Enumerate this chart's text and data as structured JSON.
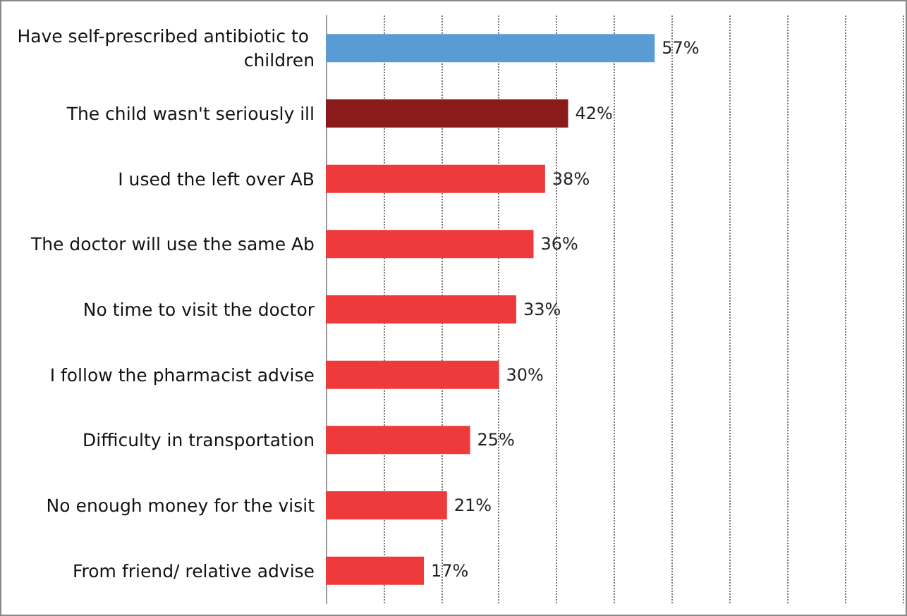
{
  "chart_data": {
    "type": "bar",
    "orientation": "horizontal",
    "categories": [
      "Have self-prescribed antibiotic to children",
      "The child wasn't seriously ill",
      "I used the left over AB",
      "The doctor will use the same Ab",
      "No time to visit the doctor",
      "I follow the pharmacist advise",
      "Difficulty in transportation",
      "No enough money for the visit",
      "From friend/ relative advise"
    ],
    "values": [
      57,
      42,
      38,
      36,
      33,
      30,
      25,
      21,
      17
    ],
    "colors": [
      "#5b9bd5",
      "#8b1a1a",
      "#ee3a3a",
      "#ee3a3a",
      "#ee3a3a",
      "#ee3a3a",
      "#ee3a3a",
      "#ee3a3a",
      "#ee3a3a"
    ],
    "value_labels": [
      "57%",
      "42%",
      "38%",
      "36%",
      "33%",
      "30%",
      "25%",
      "21%",
      "17%"
    ],
    "xlim": [
      0,
      100
    ],
    "xticks": [
      {
        "value": 0,
        "label": null
      },
      {
        "value": 10,
        "label": null
      },
      {
        "value": 20,
        "label": null
      },
      {
        "value": 30,
        "label": null
      },
      {
        "value": 40,
        "label": null
      },
      {
        "value": 50,
        "label": null
      },
      {
        "value": 60,
        "label": null
      },
      {
        "value": 70,
        "label": null
      },
      {
        "value": 80,
        "label": null
      },
      {
        "value": 90,
        "label": null
      },
      {
        "value": 100,
        "label": null
      }
    ],
    "grid": "x",
    "tick_labels": "y"
  }
}
